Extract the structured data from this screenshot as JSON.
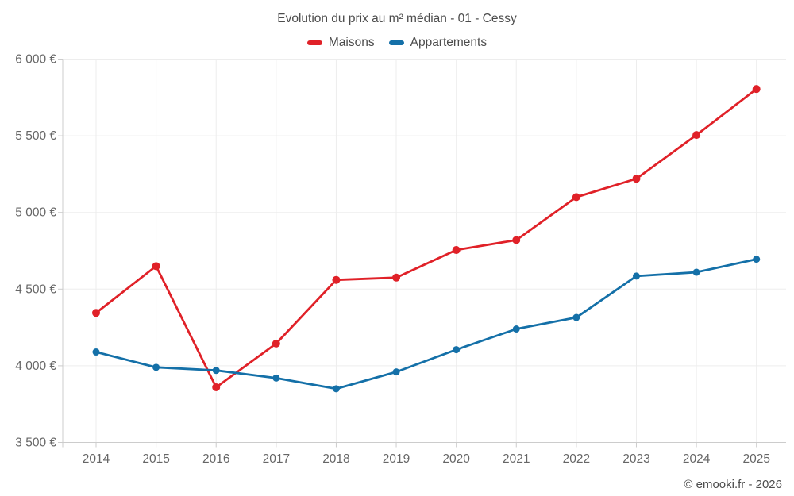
{
  "chart": {
    "attribution": "© emooki.fr - 2026"
  },
  "chart_data": {
    "type": "line",
    "title": "Evolution du prix au m² médian - 01 - Cessy",
    "categories": [
      "2014",
      "2015",
      "2016",
      "2017",
      "2018",
      "2019",
      "2020",
      "2021",
      "2022",
      "2023",
      "2024",
      "2025"
    ],
    "series": [
      {
        "name": "Maisons",
        "color": "#e02128",
        "marker_radius": 5,
        "values": [
          4345,
          4650,
          3860,
          4145,
          4560,
          4575,
          4755,
          4820,
          5100,
          5220,
          5505,
          5805
        ]
      },
      {
        "name": "Appartements",
        "color": "#1470a8",
        "marker_radius": 4.5,
        "values": [
          4090,
          3990,
          3970,
          3920,
          3850,
          3960,
          4105,
          4240,
          4315,
          4585,
          4610,
          4695
        ]
      }
    ],
    "xlabel": "",
    "ylabel": "",
    "ylim": [
      3500,
      6000
    ],
    "ytick_step": 500,
    "ytick_labels": [
      "3 500 €",
      "4 000 €",
      "4 500 €",
      "5 000 €",
      "5 500 €",
      "6 000 €"
    ],
    "grid": true,
    "legend_position": "top",
    "colors": {
      "grid": "#ededed",
      "axis": "#cccccc",
      "tick_label": "#666666",
      "title": "#4c4c4c"
    }
  }
}
